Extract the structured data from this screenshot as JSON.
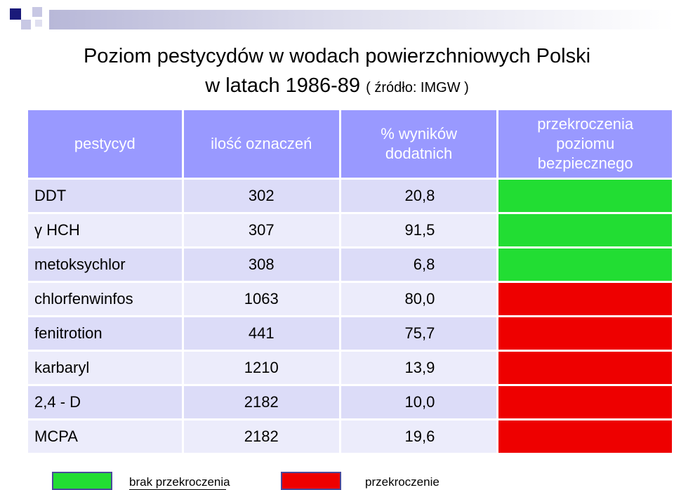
{
  "title": {
    "line1": "Poziom pestycydów w wodach powierzchniowych Polski",
    "line2": "w latach 1986-89",
    "source": "( źródło: IMGW )"
  },
  "table": {
    "headers": [
      "pestycyd",
      "ilość oznaczeń",
      "% wyników dodatnich",
      "przekroczenia poziomu bezpiecznego"
    ],
    "rows": [
      {
        "name": "DDT",
        "count": "302",
        "pct": "20,8",
        "status": "brak"
      },
      {
        "name": "γ HCH",
        "count": "307",
        "pct": "91,5",
        "status": "brak"
      },
      {
        "name": "metoksychlor",
        "count": "308",
        "pct": "6,8",
        "status": "brak"
      },
      {
        "name": "chlorfenwinfos",
        "count": "1063",
        "pct": "80,0",
        "status": "przekroczenie"
      },
      {
        "name": "fenitrotion",
        "count": "441",
        "pct": "75,7",
        "status": "przekroczenie"
      },
      {
        "name": "karbaryl",
        "count": "1210",
        "pct": "13,9",
        "status": "przekroczenie"
      },
      {
        "name": "2,4 - D",
        "count": "2182",
        "pct": "10,0",
        "status": "przekroczenie"
      },
      {
        "name": "MCPA",
        "count": "2182",
        "pct": "19,6",
        "status": "przekroczenie"
      }
    ]
  },
  "legend": {
    "no_exceed_label": "brak przekroczenia",
    "exceed_label": "przekroczenie"
  },
  "colors": {
    "header_bg": "#9999ff",
    "no_exceed": "#22dd33",
    "exceed": "#ee0000"
  }
}
